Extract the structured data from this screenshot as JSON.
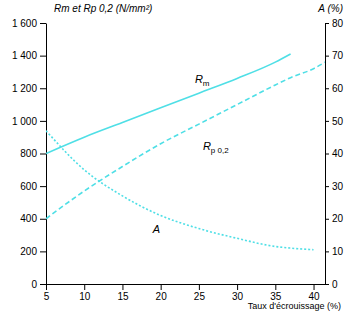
{
  "chart_data": {
    "type": "line",
    "y_label": "Rm et Rp 0,2 (N/mm²)",
    "y2_label": "A (%)",
    "x_label": "Taux d'écrouissage (%)",
    "x": [
      5,
      10,
      15,
      20,
      25,
      30,
      35,
      37,
      40,
      41.5
    ],
    "xlim": [
      5,
      41.5
    ],
    "xticks": [
      5,
      10,
      15,
      20,
      25,
      30,
      35,
      40
    ],
    "ylim": [
      0,
      1600
    ],
    "yticks": [
      0,
      200,
      400,
      600,
      800,
      {
        "value": 1000,
        "label": "1 000"
      },
      {
        "value": 1200,
        "label": "1 200"
      },
      {
        "value": 1400,
        "label": "1 400"
      },
      {
        "value": 1600,
        "label": "1 600"
      }
    ],
    "y2lim": [
      0,
      80
    ],
    "y2ticks": [
      0,
      10,
      20,
      30,
      40,
      50,
      60,
      70,
      80
    ],
    "grid": false,
    "color": "#4fdfe6",
    "series": [
      {
        "name": "Rm",
        "line_style": "solid",
        "values": [
          800,
          900,
          990,
          1080,
          1170,
          1260,
          1360,
          1410,
          null,
          null
        ]
      },
      {
        "name": "Rp 0,2",
        "line_style": "dashed",
        "values": [
          400,
          570,
          720,
          860,
          980,
          1100,
          1220,
          1265,
          1320,
          1360
        ]
      },
      {
        "name": "A",
        "line_style": "dotted",
        "axis": "y2",
        "values": [
          47,
          35,
          27,
          21,
          17,
          14,
          11.5,
          11,
          10.5,
          null
        ]
      }
    ]
  }
}
